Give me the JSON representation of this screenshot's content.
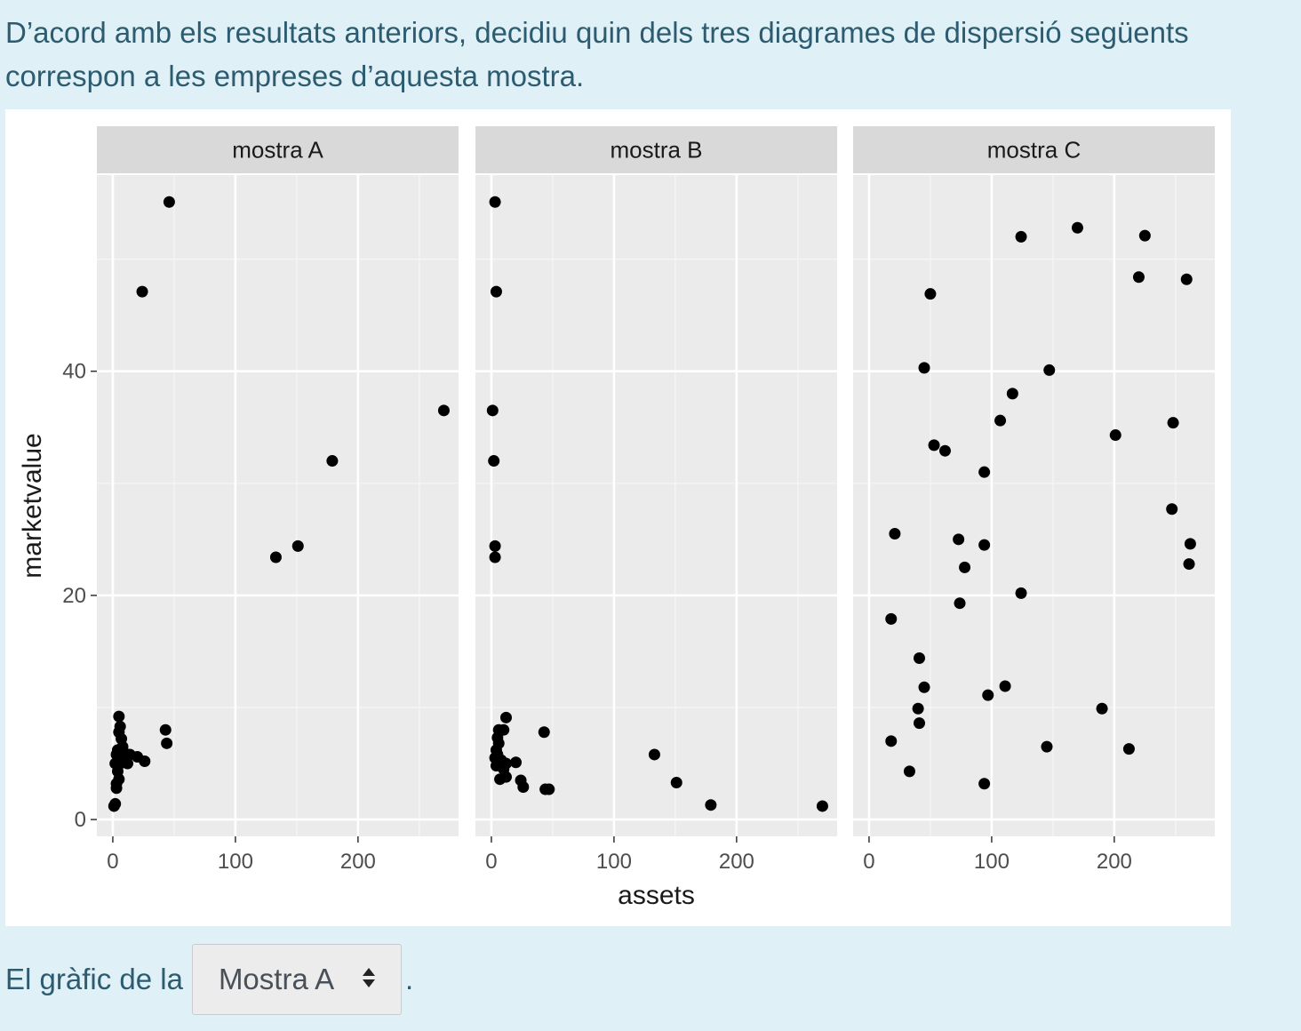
{
  "question": "D’acord amb els resultats anteriors, decidiu quin dels tres diagrames de dispersió següents correspon a les empreses d’aquesta mostra.",
  "answer": {
    "prefix": "El gràfic de la",
    "selected": "Mostra A",
    "suffix": "."
  },
  "chart_data": {
    "type": "scatter",
    "xlabel": "assets",
    "ylabel": "marketvalue",
    "x_ticks": [
      0,
      100,
      200
    ],
    "y_ticks": [
      0,
      20,
      40
    ],
    "xlim": [
      -13,
      282
    ],
    "ylim": [
      -1.5,
      57.5
    ],
    "grid": true,
    "panels": [
      {
        "name": "mostra A",
        "points": [
          [
            46,
            55.1
          ],
          [
            24,
            47.1
          ],
          [
            270,
            36.5
          ],
          [
            179,
            32.0
          ],
          [
            151,
            24.4
          ],
          [
            133,
            23.4
          ],
          [
            43,
            8.0
          ],
          [
            44,
            6.8
          ],
          [
            26,
            5.2
          ],
          [
            20,
            5.6
          ],
          [
            14,
            5.8
          ],
          [
            12,
            5.0
          ],
          [
            10,
            5.5
          ],
          [
            9,
            6.0
          ],
          [
            8,
            6.5
          ],
          [
            7,
            7.2
          ],
          [
            6,
            8.3
          ],
          [
            5,
            9.2
          ],
          [
            5,
            7.8
          ],
          [
            4,
            6.2
          ],
          [
            3,
            5.8
          ],
          [
            2,
            5.0
          ],
          [
            4,
            4.3
          ],
          [
            5,
            3.6
          ],
          [
            3,
            3.2
          ],
          [
            3,
            2.8
          ],
          [
            2,
            1.4
          ],
          [
            1,
            1.2
          ],
          [
            8,
            5.3
          ],
          [
            6,
            5.0
          ]
        ]
      },
      {
        "name": "mostra B",
        "points": [
          [
            3,
            55.1
          ],
          [
            4,
            47.1
          ],
          [
            1,
            36.5
          ],
          [
            2,
            32.0
          ],
          [
            3,
            24.4
          ],
          [
            3,
            23.4
          ],
          [
            12,
            9.1
          ],
          [
            10,
            8.0
          ],
          [
            6,
            8.0
          ],
          [
            5,
            7.3
          ],
          [
            6,
            6.8
          ],
          [
            4,
            6.2
          ],
          [
            5,
            5.8
          ],
          [
            8,
            5.3
          ],
          [
            12,
            5.0
          ],
          [
            20,
            5.1
          ],
          [
            10,
            4.5
          ],
          [
            12,
            3.8
          ],
          [
            7,
            3.6
          ],
          [
            24,
            3.5
          ],
          [
            26,
            2.9
          ],
          [
            44,
            2.7
          ],
          [
            47,
            2.7
          ],
          [
            43,
            7.8
          ],
          [
            133,
            5.8
          ],
          [
            151,
            3.3
          ],
          [
            179,
            1.3
          ],
          [
            270,
            1.2
          ],
          [
            4,
            4.8
          ],
          [
            3,
            5.5
          ]
        ]
      },
      {
        "name": "mostra C",
        "points": [
          [
            124,
            52.0
          ],
          [
            170,
            52.8
          ],
          [
            225,
            52.1
          ],
          [
            220,
            48.4
          ],
          [
            259,
            48.2
          ],
          [
            50,
            46.9
          ],
          [
            45,
            40.3
          ],
          [
            147,
            40.1
          ],
          [
            117,
            38.0
          ],
          [
            107,
            35.6
          ],
          [
            201,
            34.3
          ],
          [
            248,
            35.4
          ],
          [
            53,
            33.4
          ],
          [
            62,
            32.9
          ],
          [
            94,
            31.0
          ],
          [
            247,
            27.7
          ],
          [
            21,
            25.5
          ],
          [
            73,
            25.0
          ],
          [
            94,
            24.5
          ],
          [
            262,
            24.6
          ],
          [
            78,
            22.5
          ],
          [
            261,
            22.8
          ],
          [
            124,
            20.2
          ],
          [
            74,
            19.3
          ],
          [
            18,
            17.9
          ],
          [
            41,
            14.4
          ],
          [
            45,
            11.8
          ],
          [
            111,
            11.9
          ],
          [
            97,
            11.1
          ],
          [
            40,
            9.9
          ],
          [
            190,
            9.9
          ],
          [
            41,
            8.6
          ],
          [
            18,
            7.0
          ],
          [
            145,
            6.5
          ],
          [
            212,
            6.3
          ],
          [
            33,
            4.3
          ],
          [
            94,
            3.2
          ]
        ]
      }
    ]
  }
}
